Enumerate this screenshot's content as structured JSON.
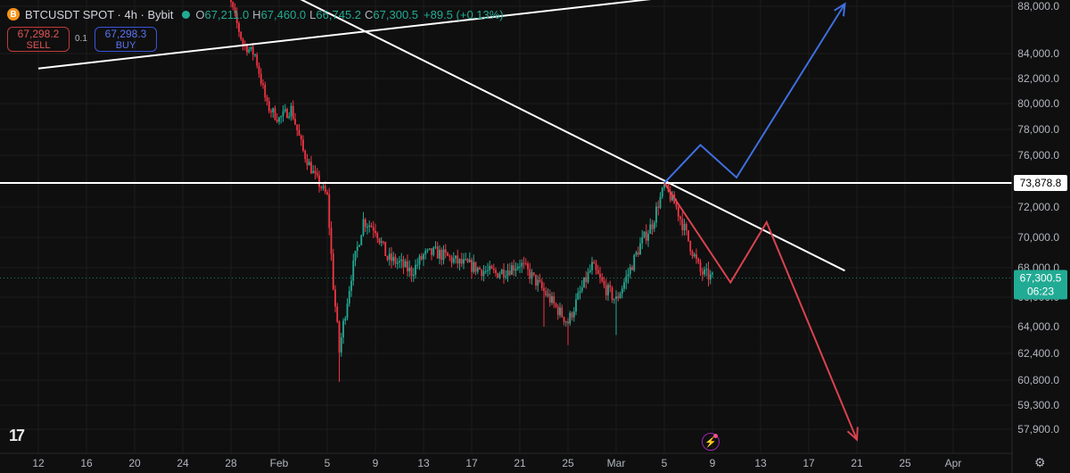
{
  "header": {
    "coin_glyph": "B",
    "symbol": "BTCUSDT SPOT · 4h · Bybit",
    "open_key": "O",
    "open": "67,211.0",
    "high_key": "H",
    "high": "67,460.0",
    "low_key": "L",
    "low": "66,745.2",
    "close_key": "C",
    "close": "67,300.5",
    "change": "+89.5 (+0.13%)"
  },
  "trade": {
    "sell_price": "67,298.2",
    "sell_label": "SELL",
    "spread": "0.1",
    "buy_price": "67,298.3",
    "buy_label": "BUY"
  },
  "logo_text": "17",
  "colors": {
    "up": "#22ab94",
    "down": "#f23645",
    "bg": "#0f0f0f",
    "blue_path": "#3f6fe0",
    "red_path": "#d9434f",
    "white_line": "#ffffff"
  },
  "chart_data": {
    "type": "candlestick",
    "symbol": "BTCUSDT",
    "timeframe": "4h",
    "y_axis_ticks": [
      88000,
      84000,
      82000,
      80000,
      78000,
      76000,
      72000,
      70000,
      68000,
      66000,
      64000,
      62400,
      60800,
      59300,
      57900
    ],
    "y_axis_labels": [
      "88,000.0",
      "84,000.0",
      "82,000.0",
      "80,000.0",
      "78,000.0",
      "76,000.0",
      "72,000.0",
      "70,000.0",
      "68,000.0",
      "66,000.0",
      "64,000.0",
      "62,400.0",
      "60,800.0",
      "59,300.0",
      "57,900.0"
    ],
    "x_axis_labels": [
      "12",
      "16",
      "20",
      "24",
      "28",
      "Feb",
      "5",
      "9",
      "13",
      "17",
      "21",
      "25",
      "Mar",
      "5",
      "9",
      "13",
      "17",
      "21",
      "25",
      "Apr"
    ],
    "x_axis_day_index": [
      0,
      4,
      8,
      12,
      16,
      20,
      24,
      28,
      32,
      36,
      40,
      44,
      48,
      52,
      56,
      60,
      64,
      68,
      72,
      76
    ],
    "price_path": [
      [
        15,
        89500
      ],
      [
        16,
        88200
      ],
      [
        17,
        84800
      ],
      [
        18,
        83900
      ],
      [
        19,
        79800
      ],
      [
        20,
        78800
      ],
      [
        21,
        79600
      ],
      [
        22,
        76300
      ],
      [
        23,
        74300
      ],
      [
        24,
        72800
      ],
      [
        24.5,
        66800
      ],
      [
        25,
        62500
      ],
      [
        26,
        67500
      ],
      [
        27,
        71100
      ],
      [
        28,
        70600
      ],
      [
        29,
        68600
      ],
      [
        30,
        68300
      ],
      [
        31,
        67700
      ],
      [
        32,
        68800
      ],
      [
        33,
        69000
      ],
      [
        34,
        68700
      ],
      [
        35,
        68300
      ],
      [
        36,
        68100
      ],
      [
        37,
        67800
      ],
      [
        38,
        67600
      ],
      [
        39,
        67900
      ],
      [
        40,
        68300
      ],
      [
        41,
        67400
      ],
      [
        42,
        66400
      ],
      [
        43,
        65300
      ],
      [
        44,
        64300
      ],
      [
        45,
        66300
      ],
      [
        46,
        68100
      ],
      [
        47,
        66700
      ],
      [
        48,
        65800
      ],
      [
        49,
        67600
      ],
      [
        50,
        69500
      ],
      [
        51,
        70900
      ],
      [
        52,
        73600
      ],
      [
        53,
        72000
      ],
      [
        54,
        69800
      ],
      [
        55,
        67700
      ],
      [
        56,
        67300
      ]
    ],
    "lows": [
      [
        25,
        60700
      ],
      [
        44,
        62900
      ],
      [
        48,
        63500
      ],
      [
        42,
        64000
      ]
    ],
    "levels": [
      {
        "type": "horizontal",
        "value": 73878.8,
        "label": "73,878.8"
      }
    ],
    "current_price": {
      "value": 67300.5,
      "label": "67,300.5",
      "countdown": "06:23"
    },
    "trendlines": [
      {
        "from": [
          0,
          82800
        ],
        "to": [
          76,
          91500
        ]
      },
      {
        "from": [
          20,
          89500
        ],
        "to": [
          67,
          67800
        ]
      }
    ],
    "projection_up": [
      [
        52,
        73878.8
      ],
      [
        55,
        76800
      ],
      [
        58,
        74300
      ],
      [
        67,
        88200
      ]
    ],
    "projection_down": [
      [
        52,
        73878.8
      ],
      [
        57.5,
        67000
      ],
      [
        60.5,
        71000
      ],
      [
        68,
        57300
      ]
    ]
  }
}
